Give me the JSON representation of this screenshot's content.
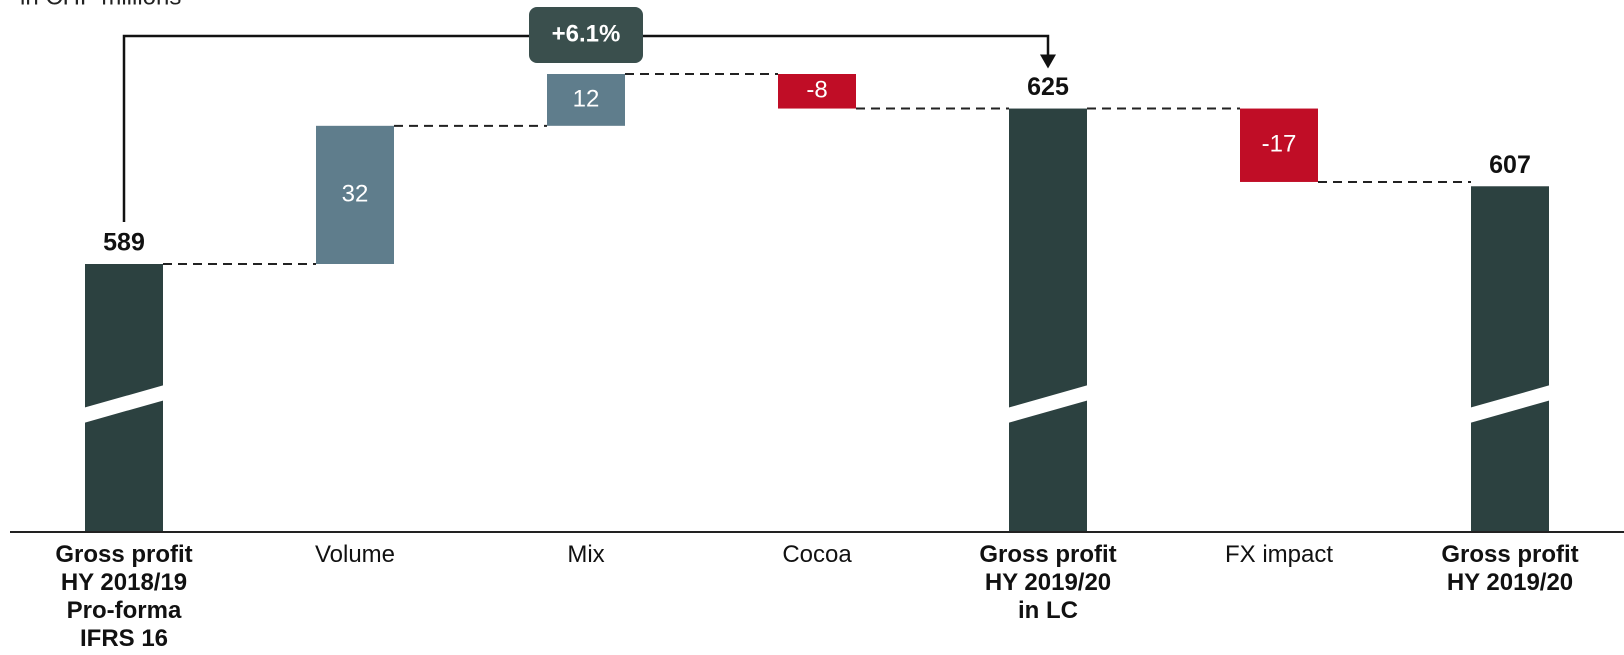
{
  "chart_data": {
    "type": "waterfall",
    "subtitle": "in CHF millions",
    "annotation": "+6.1%",
    "categories": [
      "Gross profit\nHY 2018/19\nPro-forma\nIFRS 16",
      "Volume",
      "Mix",
      "Cocoa",
      "Gross profit\nHY 2019/20\nin LC",
      "FX impact",
      "Gross profit\nHY 2019/20"
    ],
    "values": [
      589,
      32,
      12,
      -8,
      625,
      -17,
      607
    ],
    "measure": [
      "absolute",
      "relative",
      "relative",
      "relative",
      "absolute",
      "relative",
      "absolute"
    ],
    "colors": {
      "total": "#2c4140",
      "increase": "#5f7d8c",
      "decrease": "#c00d26"
    },
    "axis_break": true
  }
}
